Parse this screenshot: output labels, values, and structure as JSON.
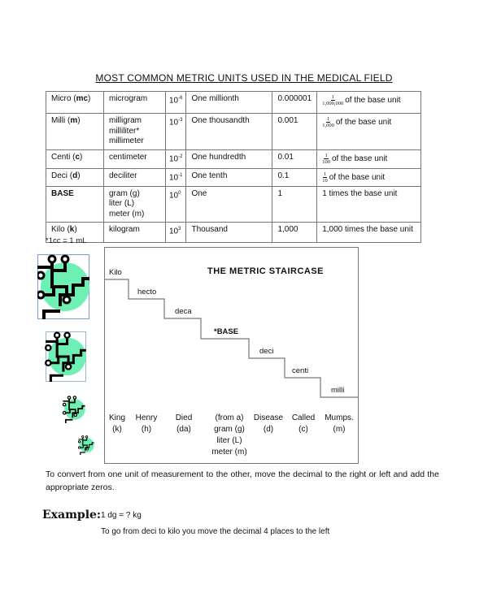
{
  "title": "MOST COMMON METRIC UNITS USED IN THE MEDICAL FIELD",
  "table": {
    "rows": [
      {
        "prefix": "Micro (",
        "abbr": "mc",
        "units": [
          "microgram"
        ],
        "exp": "-6",
        "word": "One millionth",
        "decimal": "0.000001",
        "frac_den": "1,000,000",
        "relation": "of the base unit"
      },
      {
        "prefix": "Milli (",
        "abbr": "m",
        "units": [
          "milligram",
          "milliliter*",
          "millimeter"
        ],
        "exp": "-3",
        "word": "One thousandth",
        "decimal": "0.001",
        "frac_den": "1,000",
        "relation": "of the base unit"
      },
      {
        "prefix": "Centi (",
        "abbr": "c",
        "units": [
          "centimeter"
        ],
        "exp": "-2",
        "word": "One hundredth",
        "decimal": "0.01",
        "frac_den": "100",
        "relation": "of the base unit"
      },
      {
        "prefix": "Deci (",
        "abbr": "d",
        "units": [
          "deciliter"
        ],
        "exp": "-1",
        "word": "One tenth",
        "decimal": "0.1",
        "frac_den": "10",
        "relation": "of the base unit"
      },
      {
        "prefix": "BASE",
        "abbr": "",
        "units": [
          "gram (g)",
          "liter (L)",
          "meter (m)"
        ],
        "exp": "0",
        "word": "One",
        "decimal": "1",
        "frac_den": "",
        "relation": "1 times the base unit"
      },
      {
        "prefix": "Kilo (",
        "abbr": "k",
        "units": [
          "kilogram"
        ],
        "exp": "3",
        "word": "Thousand",
        "decimal": "1,000",
        "frac_den": "",
        "relation": "1,000 times the base unit"
      }
    ],
    "frac_num": "1",
    "base_ten": "10",
    "close_paren": ")"
  },
  "footnote": "*1cc = 1 mL",
  "staircase": {
    "title": "THE METRIC STAIRCASE",
    "steps": [
      "Kilo",
      "hecto",
      "deca",
      "*BASE",
      "deci",
      "centi",
      "milli"
    ],
    "mnemonic": [
      {
        "word": "King",
        "abbr": "(k)"
      },
      {
        "word": "Henry",
        "abbr": "(h)"
      },
      {
        "word": "Died",
        "abbr": "(da)"
      },
      {
        "word": "(from a)",
        "abbr": "gram (g)\nliter (L)\nmeter (m)"
      },
      {
        "word": "Disease",
        "abbr": "(d)"
      },
      {
        "word": "Called",
        "abbr": "(c)"
      },
      {
        "word": "Mumps.",
        "abbr": "(m)"
      }
    ]
  },
  "paragraph": "To convert from one unit of measurement to the other, move the decimal to the right or left and add the appropriate zeros.",
  "example": {
    "label": "Example:",
    "equation": "1 dg = ? kg",
    "explanation": "To go from deci to kilo you move the decimal 4 places to the left"
  },
  "colors": {
    "icon_circle": "#6ef0b4",
    "icon_frame": "#7a9fd6",
    "line": "#777777"
  }
}
